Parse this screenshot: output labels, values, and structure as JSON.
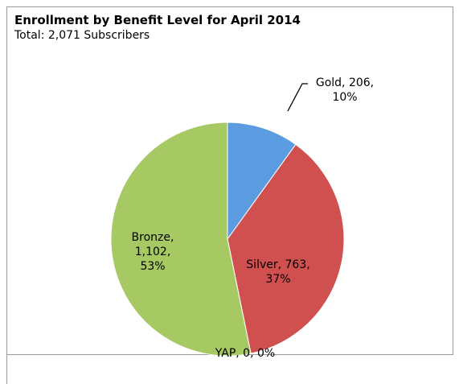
{
  "chart_data": {
    "type": "pie",
    "title": "Enrollment by Benefit Level for April 2014",
    "subtitle": "Total: 2,071 Subscribers",
    "categories": [
      "Gold",
      "Silver",
      "YAP",
      "Bronze"
    ],
    "values": [
      206,
      763,
      0,
      1102
    ],
    "value_labels": [
      "Gold, 206, 10%",
      "Silver, 763, 37%",
      "YAP, 0, 0%",
      "Bronze, 1,102, 53%"
    ],
    "colors": [
      "#5b9be0",
      "#d0504f",
      "#8064a2",
      "#a6c964"
    ]
  }
}
